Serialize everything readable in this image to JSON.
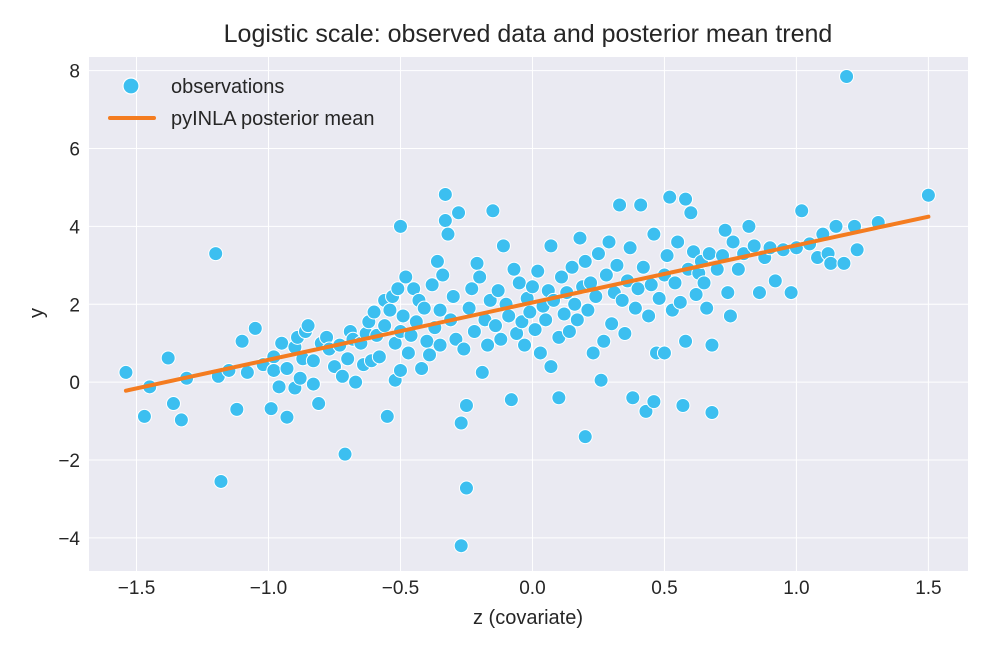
{
  "chart_data": {
    "type": "scatter",
    "title": "Logistic scale: observed data and posterior mean trend",
    "xlabel": "z (covariate)",
    "ylabel": "y",
    "xlim": [
      -1.68,
      1.65
    ],
    "ylim": [
      -4.85,
      8.35
    ],
    "xticks": [
      -1.5,
      -1.0,
      -0.5,
      0.0,
      0.5,
      1.0,
      1.5
    ],
    "xtick_labels": [
      "−1.5",
      "−1.0",
      "−0.5",
      "0.0",
      "0.5",
      "1.0",
      "1.5"
    ],
    "yticks": [
      -4,
      -2,
      0,
      2,
      4,
      6,
      8
    ],
    "ytick_labels": [
      "−4",
      "−2",
      "0",
      "2",
      "4",
      "6",
      "8"
    ],
    "grid": true,
    "legend_position": "top-left",
    "colors": {
      "observations": "#3cbff0",
      "trend": "#f47c20",
      "plot_bg": "#eaeaf2",
      "grid": "#ffffff"
    },
    "legend": [
      {
        "label": "observations",
        "kind": "marker"
      },
      {
        "label": "pyINLA posterior mean",
        "kind": "line"
      }
    ],
    "trend_line": {
      "name": "pyINLA posterior mean",
      "x": [
        -1.54,
        1.5
      ],
      "y": [
        -0.22,
        4.25
      ]
    },
    "scatter": {
      "name": "observations",
      "points": [
        [
          -1.54,
          0.25
        ],
        [
          -1.47,
          -0.88
        ],
        [
          -1.45,
          -0.12
        ],
        [
          -1.38,
          0.62
        ],
        [
          -1.36,
          -0.55
        ],
        [
          -1.33,
          -0.97
        ],
        [
          -1.31,
          0.1
        ],
        [
          -1.2,
          3.3
        ],
        [
          -1.18,
          -2.55
        ],
        [
          -1.19,
          0.15
        ],
        [
          -1.15,
          0.3
        ],
        [
          -1.12,
          -0.7
        ],
        [
          -1.1,
          1.05
        ],
        [
          -1.08,
          0.25
        ],
        [
          -1.05,
          1.38
        ],
        [
          -1.02,
          0.45
        ],
        [
          -0.99,
          -0.68
        ],
        [
          -0.98,
          0.65
        ],
        [
          -0.98,
          0.3
        ],
        [
          -0.96,
          -0.12
        ],
        [
          -0.95,
          1.0
        ],
        [
          -0.93,
          -0.9
        ],
        [
          -0.93,
          0.35
        ],
        [
          -0.9,
          0.9
        ],
        [
          -0.9,
          -0.15
        ],
        [
          -0.89,
          1.15
        ],
        [
          -0.88,
          0.1
        ],
        [
          -0.87,
          0.6
        ],
        [
          -0.86,
          1.3
        ],
        [
          -0.85,
          1.45
        ],
        [
          -0.83,
          0.55
        ],
        [
          -0.83,
          -0.05
        ],
        [
          -0.81,
          -0.55
        ],
        [
          -0.8,
          1.0
        ],
        [
          -0.78,
          1.15
        ],
        [
          -0.77,
          0.85
        ],
        [
          -0.75,
          0.4
        ],
        [
          -0.73,
          0.95
        ],
        [
          -0.72,
          0.15
        ],
        [
          -0.71,
          -1.85
        ],
        [
          -0.7,
          0.6
        ],
        [
          -0.69,
          1.3
        ],
        [
          -0.68,
          1.1
        ],
        [
          -0.67,
          0.0
        ],
        [
          -0.65,
          1.0
        ],
        [
          -0.64,
          0.45
        ],
        [
          -0.63,
          1.25
        ],
        [
          -0.62,
          1.55
        ],
        [
          -0.61,
          0.55
        ],
        [
          -0.6,
          1.8
        ],
        [
          -0.59,
          1.2
        ],
        [
          -0.58,
          0.65
        ],
        [
          -0.56,
          1.45
        ],
        [
          -0.56,
          2.1
        ],
        [
          -0.55,
          -0.88
        ],
        [
          -0.54,
          1.85
        ],
        [
          -0.53,
          2.2
        ],
        [
          -0.52,
          1.0
        ],
        [
          -0.52,
          0.05
        ],
        [
          -0.51,
          2.4
        ],
        [
          -0.5,
          1.3
        ],
        [
          -0.5,
          0.3
        ],
        [
          -0.5,
          4.0
        ],
        [
          -0.49,
          1.7
        ],
        [
          -0.48,
          2.7
        ],
        [
          -0.47,
          0.75
        ],
        [
          -0.46,
          1.2
        ],
        [
          -0.45,
          2.4
        ],
        [
          -0.44,
          1.55
        ],
        [
          -0.43,
          2.1
        ],
        [
          -0.42,
          0.35
        ],
        [
          -0.41,
          1.9
        ],
        [
          -0.4,
          1.05
        ],
        [
          -0.39,
          0.7
        ],
        [
          -0.38,
          2.5
        ],
        [
          -0.37,
          1.4
        ],
        [
          -0.36,
          3.1
        ],
        [
          -0.35,
          1.85
        ],
        [
          -0.35,
          0.95
        ],
        [
          -0.34,
          2.75
        ],
        [
          -0.33,
          4.82
        ],
        [
          -0.33,
          4.15
        ],
        [
          -0.32,
          3.8
        ],
        [
          -0.31,
          1.6
        ],
        [
          -0.3,
          2.2
        ],
        [
          -0.29,
          1.1
        ],
        [
          -0.28,
          4.35
        ],
        [
          -0.27,
          -1.05
        ],
        [
          -0.27,
          -4.2
        ],
        [
          -0.26,
          0.85
        ],
        [
          -0.25,
          -0.6
        ],
        [
          -0.25,
          -2.72
        ],
        [
          -0.24,
          1.9
        ],
        [
          -0.23,
          2.4
        ],
        [
          -0.22,
          1.3
        ],
        [
          -0.21,
          3.05
        ],
        [
          -0.2,
          2.7
        ],
        [
          -0.19,
          0.25
        ],
        [
          -0.18,
          1.6
        ],
        [
          -0.17,
          0.95
        ],
        [
          -0.16,
          2.1
        ],
        [
          -0.15,
          4.4
        ],
        [
          -0.14,
          1.45
        ],
        [
          -0.13,
          2.35
        ],
        [
          -0.12,
          1.1
        ],
        [
          -0.11,
          3.5
        ],
        [
          -0.1,
          2.0
        ],
        [
          -0.09,
          1.7
        ],
        [
          -0.08,
          -0.45
        ],
        [
          -0.07,
          2.9
        ],
        [
          -0.06,
          1.25
        ],
        [
          -0.05,
          2.55
        ],
        [
          -0.04,
          1.55
        ],
        [
          -0.03,
          0.95
        ],
        [
          -0.02,
          2.15
        ],
        [
          -0.01,
          1.8
        ],
        [
          0.0,
          2.45
        ],
        [
          0.01,
          1.35
        ],
        [
          0.02,
          2.85
        ],
        [
          0.03,
          0.75
        ],
        [
          0.04,
          1.95
        ],
        [
          0.05,
          1.6
        ],
        [
          0.06,
          2.35
        ],
        [
          0.07,
          0.4
        ],
        [
          0.07,
          3.5
        ],
        [
          0.08,
          2.1
        ],
        [
          0.1,
          1.15
        ],
        [
          0.1,
          -0.4
        ],
        [
          0.11,
          2.7
        ],
        [
          0.12,
          1.75
        ],
        [
          0.13,
          2.3
        ],
        [
          0.14,
          1.3
        ],
        [
          0.15,
          2.95
        ],
        [
          0.16,
          2.0
        ],
        [
          0.17,
          1.6
        ],
        [
          0.18,
          3.7
        ],
        [
          0.19,
          2.45
        ],
        [
          0.2,
          -1.4
        ],
        [
          0.2,
          3.1
        ],
        [
          0.21,
          1.85
        ],
        [
          0.22,
          2.55
        ],
        [
          0.23,
          0.75
        ],
        [
          0.24,
          2.2
        ],
        [
          0.25,
          3.3
        ],
        [
          0.26,
          0.05
        ],
        [
          0.27,
          1.05
        ],
        [
          0.28,
          2.75
        ],
        [
          0.29,
          3.6
        ],
        [
          0.3,
          1.5
        ],
        [
          0.31,
          2.3
        ],
        [
          0.32,
          3.0
        ],
        [
          0.33,
          4.55
        ],
        [
          0.34,
          2.1
        ],
        [
          0.35,
          1.25
        ],
        [
          0.36,
          2.6
        ],
        [
          0.37,
          3.45
        ],
        [
          0.38,
          -0.4
        ],
        [
          0.39,
          1.9
        ],
        [
          0.4,
          2.4
        ],
        [
          0.41,
          4.55
        ],
        [
          0.42,
          2.95
        ],
        [
          0.43,
          -0.75
        ],
        [
          0.44,
          1.7
        ],
        [
          0.45,
          2.5
        ],
        [
          0.46,
          3.8
        ],
        [
          0.46,
          -0.5
        ],
        [
          0.47,
          0.75
        ],
        [
          0.48,
          2.15
        ],
        [
          0.5,
          2.75
        ],
        [
          0.5,
          0.75
        ],
        [
          0.51,
          3.25
        ],
        [
          0.52,
          4.75
        ],
        [
          0.53,
          1.85
        ],
        [
          0.54,
          2.55
        ],
        [
          0.55,
          3.6
        ],
        [
          0.56,
          2.05
        ],
        [
          0.57,
          -0.6
        ],
        [
          0.58,
          4.7
        ],
        [
          0.58,
          1.05
        ],
        [
          0.59,
          2.9
        ],
        [
          0.6,
          4.35
        ],
        [
          0.61,
          3.35
        ],
        [
          0.62,
          2.25
        ],
        [
          0.63,
          2.8
        ],
        [
          0.64,
          3.1
        ],
        [
          0.65,
          2.55
        ],
        [
          0.66,
          1.9
        ],
        [
          0.67,
          3.3
        ],
        [
          0.68,
          0.95
        ],
        [
          0.68,
          -0.78
        ],
        [
          0.7,
          2.9
        ],
        [
          0.72,
          3.25
        ],
        [
          0.73,
          3.9
        ],
        [
          0.74,
          2.3
        ],
        [
          0.75,
          1.7
        ],
        [
          0.76,
          3.6
        ],
        [
          0.78,
          2.9
        ],
        [
          0.8,
          3.3
        ],
        [
          0.82,
          4.0
        ],
        [
          0.84,
          3.5
        ],
        [
          0.86,
          2.3
        ],
        [
          0.88,
          3.2
        ],
        [
          0.9,
          3.45
        ],
        [
          0.92,
          2.6
        ],
        [
          0.95,
          3.4
        ],
        [
          0.98,
          2.3
        ],
        [
          1.0,
          3.45
        ],
        [
          1.02,
          4.4
        ],
        [
          1.05,
          3.55
        ],
        [
          1.08,
          3.2
        ],
        [
          1.1,
          3.8
        ],
        [
          1.12,
          3.3
        ],
        [
          1.13,
          3.05
        ],
        [
          1.15,
          4.0
        ],
        [
          1.18,
          3.05
        ],
        [
          1.19,
          7.85
        ],
        [
          1.22,
          4.0
        ],
        [
          1.23,
          3.4
        ],
        [
          1.31,
          4.1
        ],
        [
          1.5,
          4.8
        ]
      ]
    }
  }
}
